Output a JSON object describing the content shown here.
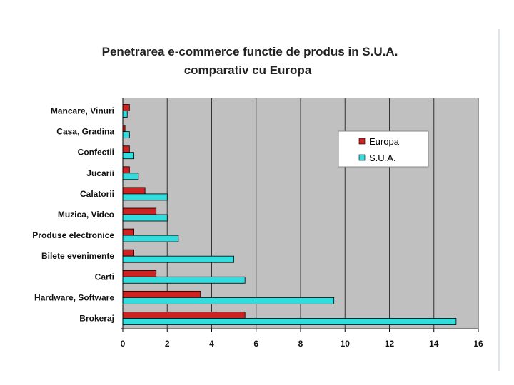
{
  "chart_data": {
    "type": "bar",
    "orientation": "horizontal",
    "title_lines": [
      "Penetrarea e-commerce functie de produs in S.U.A.",
      "comparativ cu Europa"
    ],
    "categories": [
      "Mancare, Vinuri",
      "Casa, Gradina",
      "Confectii",
      "Jucarii",
      "Calatorii",
      "Muzica, Video",
      "Produse electronice",
      "Bilete evenimente",
      "Carti",
      "Hardware, Software",
      "Brokeraj"
    ],
    "series": [
      {
        "name": "Europa",
        "color": "#cc2222",
        "values": [
          0.3,
          0.1,
          0.3,
          0.3,
          1.0,
          1.5,
          0.5,
          0.5,
          1.5,
          3.5,
          5.5
        ]
      },
      {
        "name": "S.U.A.",
        "color": "#33dddd",
        "values": [
          0.2,
          0.3,
          0.5,
          0.7,
          2.0,
          2.0,
          2.5,
          5.0,
          5.5,
          9.5,
          15.0
        ]
      }
    ],
    "xlim": [
      0,
      16
    ],
    "xticks": [
      0,
      2,
      4,
      6,
      8,
      10,
      12,
      14,
      16
    ],
    "xtick_labels": [
      "0",
      "2",
      "4",
      "6",
      "8",
      "10",
      "12",
      "14",
      "16"
    ],
    "grid": "vertical",
    "legend_position": "top-right",
    "plot_background": "#c0c0c0"
  }
}
